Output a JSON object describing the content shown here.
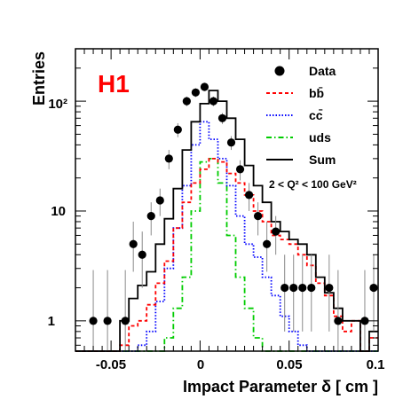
{
  "chart_data": {
    "type": "histogram",
    "badge": "H1",
    "xlabel": "Impact Parameter δ [ cm ]",
    "ylabel": "Entries",
    "xlim": [
      -0.07,
      0.1
    ],
    "ylim_log": [
      0.53,
      300
    ],
    "log_y": true,
    "x_tick_labels": [
      "-0.05",
      "0",
      "0.05",
      "0.1"
    ],
    "y_tick_labels": [
      "1",
      "10",
      "10²"
    ],
    "colors": {
      "data": "#000000",
      "bb": "#ff0000",
      "cc": "#0000ff",
      "uds": "#00cc00",
      "sum": "#000000",
      "badge": "#ff0000"
    },
    "legend": {
      "placement": "top-right",
      "entries": [
        {
          "key": "data",
          "label": "Data"
        },
        {
          "key": "bb",
          "label": "bb̄"
        },
        {
          "key": "cc",
          "label": "cc̄"
        },
        {
          "key": "uds",
          "label": "uds"
        },
        {
          "key": "sum",
          "label": "Sum"
        }
      ],
      "note": "2 < Q² < 100 GeV²"
    },
    "bin_edges": [
      -0.07,
      -0.065,
      -0.06,
      -0.055,
      -0.05,
      -0.045,
      -0.04,
      -0.035,
      -0.03,
      -0.025,
      -0.02,
      -0.015,
      -0.01,
      -0.005,
      0,
      0.005,
      0.01,
      0.015,
      0.02,
      0.025,
      0.03,
      0.035,
      0.04,
      0.045,
      0.05,
      0.055,
      0.06,
      0.065,
      0.07,
      0.075,
      0.08,
      0.085,
      0.09,
      0.095,
      0.1
    ],
    "series": [
      {
        "key": "sum",
        "label": "Sum",
        "values": [
          0.5,
          0.5,
          0.5,
          0.5,
          0.5,
          1.0,
          1.6,
          2.1,
          2.8,
          5.0,
          8.5,
          16,
          36,
          65,
          95,
          125,
          100,
          70,
          45,
          26,
          17,
          12,
          8,
          6.5,
          5.5,
          5.0,
          4.0,
          2.5,
          1.8,
          1.3,
          1.0,
          1.0,
          0.5,
          0.8
        ]
      },
      {
        "key": "bb",
        "label": "bb̄",
        "values": [
          0.5,
          0.5,
          0.5,
          0.5,
          0.5,
          0.6,
          0.9,
          1.0,
          1.4,
          2.2,
          3.5,
          7,
          12,
          18,
          24,
          30,
          28,
          22,
          18,
          14,
          10,
          8,
          6,
          5.5,
          5,
          4,
          3.2,
          2.2,
          1.7,
          1.1,
          0.8,
          1,
          0.5,
          0.7
        ]
      },
      {
        "key": "cc",
        "label": "cc̄",
        "values": [
          0.5,
          0.5,
          0.5,
          0.5,
          0.5,
          0.5,
          0.5,
          0.6,
          0.8,
          1.5,
          3,
          7,
          17,
          40,
          65,
          45,
          30,
          17,
          9,
          5,
          3.8,
          2.5,
          1.7,
          1.1,
          0.8,
          0.6,
          0.5,
          0.5,
          0.5,
          0.5,
          0.5,
          0.5,
          0.5,
          0.5
        ]
      },
      {
        "key": "uds",
        "label": "uds",
        "values": [
          0.5,
          0.5,
          0.5,
          0.5,
          0.5,
          0.5,
          0.5,
          0.5,
          0.5,
          0.5,
          0.7,
          1.3,
          2.5,
          10,
          28,
          30,
          18,
          6,
          2.5,
          1.3,
          0.7,
          0.5,
          0.5,
          0.5,
          0.5,
          0.5,
          0.5,
          0.5,
          0.5,
          0.5,
          0.5,
          0.5,
          0.5,
          0.5
        ]
      }
    ],
    "data_points": [
      {
        "x": -0.06,
        "y": 1.0,
        "err_lo": 0.53,
        "err_hi": 2.9
      },
      {
        "x": -0.052,
        "y": 1.0,
        "err_lo": 0.53,
        "err_hi": 2.9
      },
      {
        "x": -0.042,
        "y": 1.0,
        "err_lo": 0.53,
        "err_hi": 2.9
      },
      {
        "x": -0.0375,
        "y": 5.0,
        "err_lo": 2.8,
        "err_hi": 8.0
      },
      {
        "x": -0.0325,
        "y": 4.0,
        "err_lo": 2.0,
        "err_hi": 6.5
      },
      {
        "x": -0.0275,
        "y": 9.0,
        "err_lo": 6.0,
        "err_hi": 12.0
      },
      {
        "x": -0.0225,
        "y": 12.5,
        "err_lo": 9.0,
        "err_hi": 16.0
      },
      {
        "x": -0.0175,
        "y": 30,
        "err_lo": 24,
        "err_hi": 36
      },
      {
        "x": -0.0125,
        "y": 55,
        "err_lo": 47,
        "err_hi": 63
      },
      {
        "x": -0.0075,
        "y": 100,
        "err_lo": 90,
        "err_hi": 110
      },
      {
        "x": -0.0025,
        "y": 120,
        "err_lo": 109,
        "err_hi": 131
      },
      {
        "x": 0.0025,
        "y": 135,
        "err_lo": 123,
        "err_hi": 147
      },
      {
        "x": 0.0075,
        "y": 100,
        "err_lo": 90,
        "err_hi": 110
      },
      {
        "x": 0.0125,
        "y": 70,
        "err_lo": 62,
        "err_hi": 78
      },
      {
        "x": 0.0175,
        "y": 42,
        "err_lo": 36,
        "err_hi": 48
      },
      {
        "x": 0.0225,
        "y": 24,
        "err_lo": 19,
        "err_hi": 29
      },
      {
        "x": 0.0275,
        "y": 14,
        "err_lo": 10,
        "err_hi": 18
      },
      {
        "x": 0.0325,
        "y": 9.0,
        "err_lo": 6.0,
        "err_hi": 12
      },
      {
        "x": 0.0375,
        "y": 5.0,
        "err_lo": 2.8,
        "err_hi": 8
      },
      {
        "x": 0.0425,
        "y": 6.5,
        "err_lo": 4.0,
        "err_hi": 9
      },
      {
        "x": 0.0475,
        "y": 2.0,
        "err_lo": 0.8,
        "err_hi": 4
      },
      {
        "x": 0.0525,
        "y": 2.0,
        "err_lo": 0.8,
        "err_hi": 4
      },
      {
        "x": 0.0575,
        "y": 2.0,
        "err_lo": 0.8,
        "err_hi": 4
      },
      {
        "x": 0.0625,
        "y": 2.0,
        "err_lo": 0.8,
        "err_hi": 4
      },
      {
        "x": 0.0725,
        "y": 2.0,
        "err_lo": 0.8,
        "err_hi": 4
      },
      {
        "x": 0.0775,
        "y": 1.0,
        "err_lo": 0.53,
        "err_hi": 2.9
      },
      {
        "x": 0.0925,
        "y": 1.0,
        "err_lo": 0.53,
        "err_hi": 2.9
      },
      {
        "x": 0.0975,
        "y": 2.0,
        "err_lo": 0.8,
        "err_hi": 4
      }
    ]
  }
}
